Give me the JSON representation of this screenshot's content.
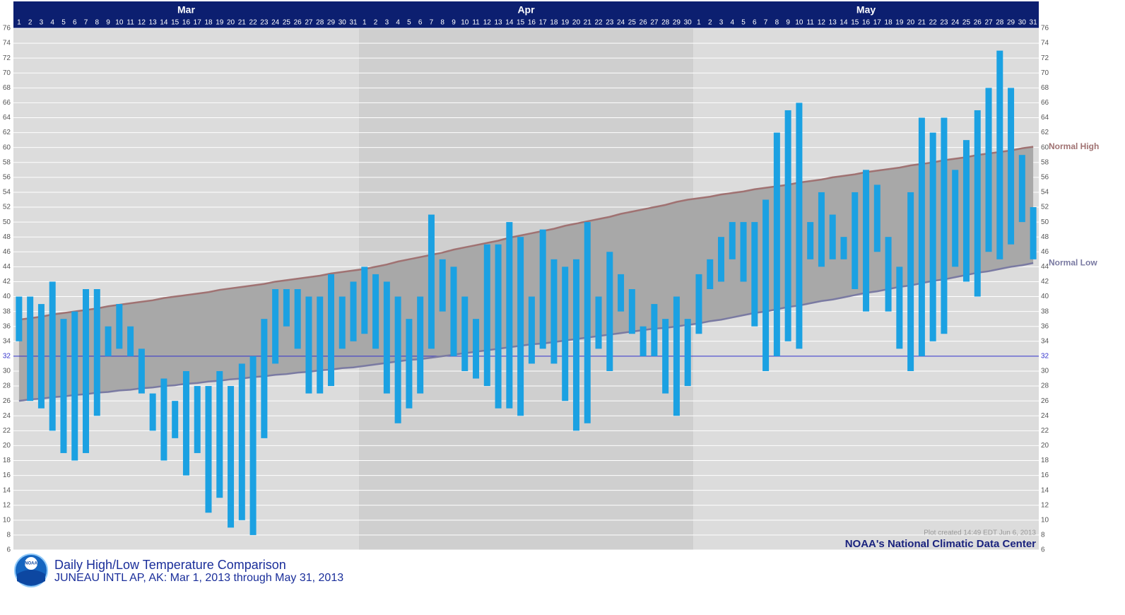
{
  "chart_data": {
    "type": "range-bar",
    "title": "Daily High/Low Temperature Comparison",
    "subtitle": "JUNEAU INTL AP, AK: Mar 1, 2013 through May 31, 2013",
    "credit": "NOAA's National Climatic Data Center",
    "timestamp": "Plot created 14:49 EDT Jun 6, 2013",
    "logo_text": "NOAA",
    "months": [
      "Mar",
      "Apr",
      "May"
    ],
    "categories": [
      1,
      2,
      3,
      4,
      5,
      6,
      7,
      8,
      9,
      10,
      11,
      12,
      13,
      14,
      15,
      16,
      17,
      18,
      19,
      20,
      21,
      22,
      23,
      24,
      25,
      26,
      27,
      28,
      29,
      30,
      31,
      1,
      2,
      3,
      4,
      5,
      6,
      7,
      8,
      9,
      10,
      11,
      12,
      13,
      14,
      15,
      16,
      17,
      18,
      19,
      20,
      21,
      22,
      23,
      24,
      25,
      26,
      27,
      28,
      29,
      30,
      1,
      2,
      3,
      4,
      5,
      6,
      7,
      8,
      9,
      10,
      11,
      12,
      13,
      14,
      15,
      16,
      17,
      18,
      19,
      20,
      21,
      22,
      23,
      24,
      25,
      26,
      27,
      28,
      29,
      30,
      31
    ],
    "color": "#1ba1e2",
    "high": [
      40,
      40,
      39,
      42,
      37,
      38,
      41,
      41,
      36,
      39,
      36,
      33,
      27,
      29,
      26,
      30,
      28,
      28,
      30,
      28,
      31,
      32,
      37,
      41,
      41,
      41,
      40,
      40,
      43,
      40,
      42,
      44,
      43,
      42,
      40,
      37,
      40,
      51,
      45,
      44,
      40,
      37,
      47,
      47,
      50,
      48,
      40,
      49,
      45,
      44,
      45,
      50,
      40,
      46,
      43,
      41,
      36,
      39,
      37,
      40,
      37,
      43,
      45,
      48,
      50,
      50,
      50,
      53,
      62,
      65,
      66,
      50,
      54,
      51,
      48,
      54,
      57,
      55,
      48,
      44,
      54,
      64,
      62,
      64,
      57,
      61,
      65,
      68,
      73,
      68,
      59,
      52
    ],
    "low": [
      34,
      26,
      25,
      22,
      19,
      18,
      19,
      24,
      32,
      33,
      32,
      27,
      22,
      18,
      21,
      16,
      19,
      11,
      13,
      9,
      10,
      8,
      21,
      31,
      36,
      33,
      27,
      27,
      28,
      33,
      34,
      35,
      33,
      27,
      23,
      25,
      27,
      33,
      38,
      32,
      30,
      29,
      28,
      25,
      25,
      24,
      31,
      33,
      31,
      26,
      22,
      23,
      33,
      30,
      38,
      35,
      32,
      32,
      27,
      24,
      28,
      35,
      41,
      42,
      45,
      42,
      36,
      30,
      32,
      34,
      33,
      45,
      44,
      45,
      45,
      41,
      38,
      46,
      38,
      33,
      30,
      32,
      34,
      35,
      44,
      42,
      40,
      46,
      45,
      47,
      50,
      45
    ],
    "normals": [
      {
        "name": "Normal High",
        "color": "#a07272",
        "values": [
          36.9,
          37.1,
          37.3,
          37.6,
          37.8,
          38.0,
          38.2,
          38.4,
          38.7,
          38.9,
          39.1,
          39.3,
          39.5,
          39.8,
          40.0,
          40.2,
          40.4,
          40.6,
          40.9,
          41.1,
          41.3,
          41.5,
          41.7,
          42.0,
          42.2,
          42.4,
          42.6,
          42.8,
          43.1,
          43.3,
          43.5,
          43.7,
          44.0,
          44.3,
          44.7,
          45.0,
          45.3,
          45.6,
          45.9,
          46.3,
          46.6,
          46.9,
          47.2,
          47.5,
          47.9,
          48.2,
          48.5,
          48.8,
          49.1,
          49.5,
          49.8,
          50.1,
          50.4,
          50.7,
          51.1,
          51.4,
          51.7,
          52.0,
          52.3,
          52.7,
          53.0,
          53.2,
          53.4,
          53.7,
          53.9,
          54.1,
          54.4,
          54.6,
          54.8,
          55.0,
          55.3,
          55.5,
          55.7,
          56.0,
          56.2,
          56.4,
          56.7,
          56.9,
          57.1,
          57.3,
          57.6,
          57.8,
          58.0,
          58.3,
          58.5,
          58.7,
          59.0,
          59.2,
          59.4,
          59.6,
          59.9,
          60.1
        ]
      },
      {
        "name": "Normal Low",
        "color": "#7a7aa2",
        "values": [
          26.0,
          26.2,
          26.3,
          26.5,
          26.6,
          26.8,
          26.9,
          27.1,
          27.2,
          27.4,
          27.5,
          27.7,
          27.8,
          28.0,
          28.1,
          28.3,
          28.4,
          28.6,
          28.7,
          28.9,
          29.0,
          29.2,
          29.3,
          29.5,
          29.6,
          29.8,
          29.9,
          30.1,
          30.2,
          30.4,
          30.5,
          30.7,
          30.9,
          31.1,
          31.3,
          31.5,
          31.6,
          31.8,
          32.0,
          32.2,
          32.4,
          32.6,
          32.8,
          33.0,
          33.2,
          33.4,
          33.6,
          33.7,
          33.9,
          34.1,
          34.3,
          34.5,
          34.7,
          34.9,
          35.1,
          35.3,
          35.5,
          35.7,
          35.8,
          36.0,
          36.2,
          36.4,
          36.7,
          36.9,
          37.2,
          37.5,
          37.8,
          38.0,
          38.3,
          38.6,
          38.8,
          39.1,
          39.4,
          39.6,
          39.9,
          40.2,
          40.5,
          40.7,
          41.0,
          41.3,
          41.5,
          41.8,
          42.1,
          42.3,
          42.6,
          42.9,
          43.2,
          43.4,
          43.7,
          44.0,
          44.2,
          44.5
        ]
      }
    ],
    "band_color": "#a8a8a8",
    "reference_line": 32,
    "reference_color": "#3333cc",
    "ylim": [
      6,
      76
    ],
    "yticks": [
      6,
      8,
      10,
      12,
      14,
      16,
      18,
      20,
      22,
      24,
      26,
      28,
      30,
      32,
      34,
      36,
      38,
      40,
      42,
      44,
      46,
      48,
      50,
      52,
      54,
      56,
      58,
      60,
      62,
      64,
      66,
      68,
      70,
      72,
      74,
      76
    ],
    "grid": true
  }
}
